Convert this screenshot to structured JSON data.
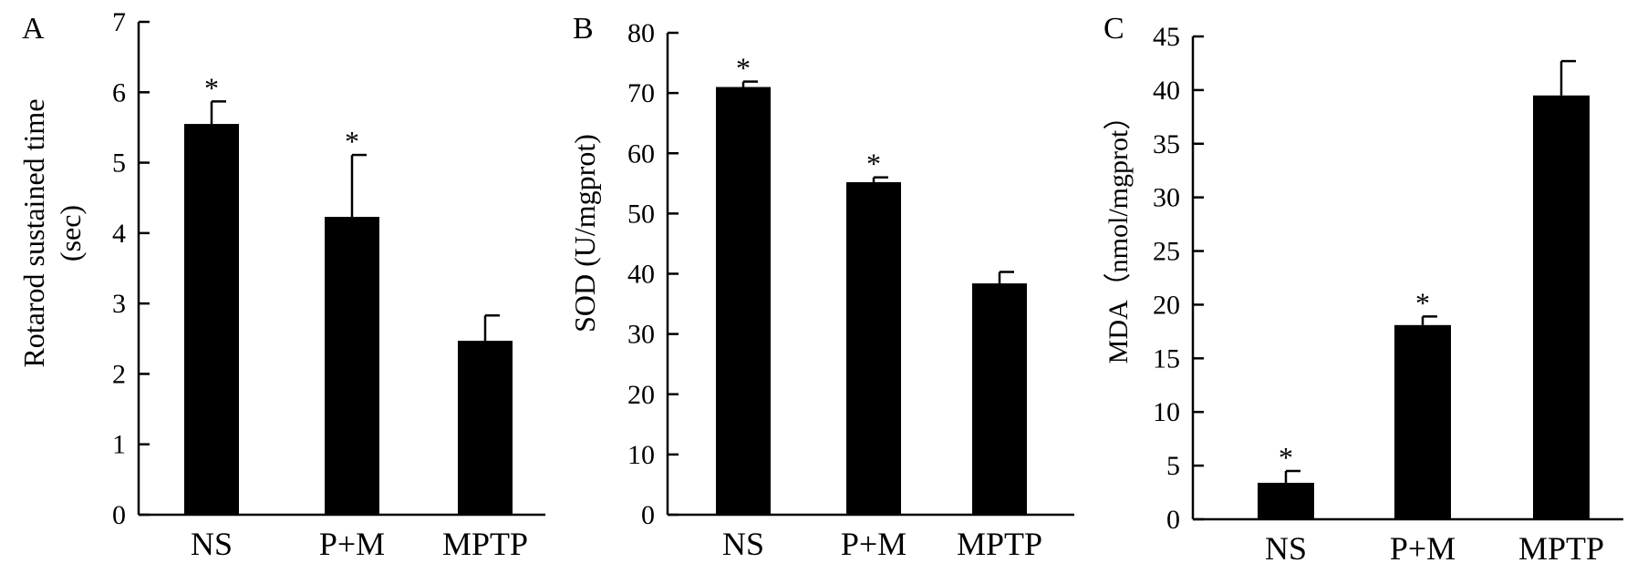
{
  "chart_data": [
    {
      "type": "bar",
      "panel_label": "A",
      "categories": [
        "NS",
        "P+M",
        "MPTP"
      ],
      "values": [
        5.55,
        4.23,
        2.47
      ],
      "errors": [
        0.32,
        0.88,
        0.36
      ],
      "significance": [
        "*",
        "*",
        ""
      ],
      "ylabel": "Rotarod sustained time",
      "ylabel2": "(sec)",
      "ylim": [
        0,
        7
      ],
      "yticks": [
        "0",
        "1",
        "2",
        "3",
        "4",
        "5",
        "6",
        "7"
      ],
      "grid": false
    },
    {
      "type": "bar",
      "panel_label": "B",
      "categories": [
        "NS",
        "P+M",
        "MPTP"
      ],
      "values": [
        71.0,
        55.2,
        38.4
      ],
      "errors": [
        0.9,
        0.8,
        1.9
      ],
      "significance": [
        "*",
        "*",
        ""
      ],
      "ylabel": "SOD (U/mgprot)",
      "ylim": [
        0,
        80
      ],
      "yticks": [
        "0",
        "10",
        "20",
        "30",
        "40",
        "50",
        "60",
        "70",
        "80"
      ],
      "grid": false
    },
    {
      "type": "bar",
      "panel_label": "C",
      "categories": [
        "NS",
        "P+M",
        "MPTP"
      ],
      "values": [
        3.4,
        18.1,
        39.5
      ],
      "errors": [
        1.1,
        0.8,
        3.2
      ],
      "significance": [
        "*",
        "*",
        ""
      ],
      "ylabel": "MDA（nmol/mgprot）",
      "ylim": [
        0,
        45
      ],
      "yticks": [
        "0",
        "5",
        "10",
        "15",
        "20",
        "25",
        "30",
        "35",
        "40",
        "45"
      ],
      "grid": false
    }
  ],
  "style": {
    "bar_color": "#000000",
    "axis_color": "#000000",
    "background": "#ffffff"
  }
}
